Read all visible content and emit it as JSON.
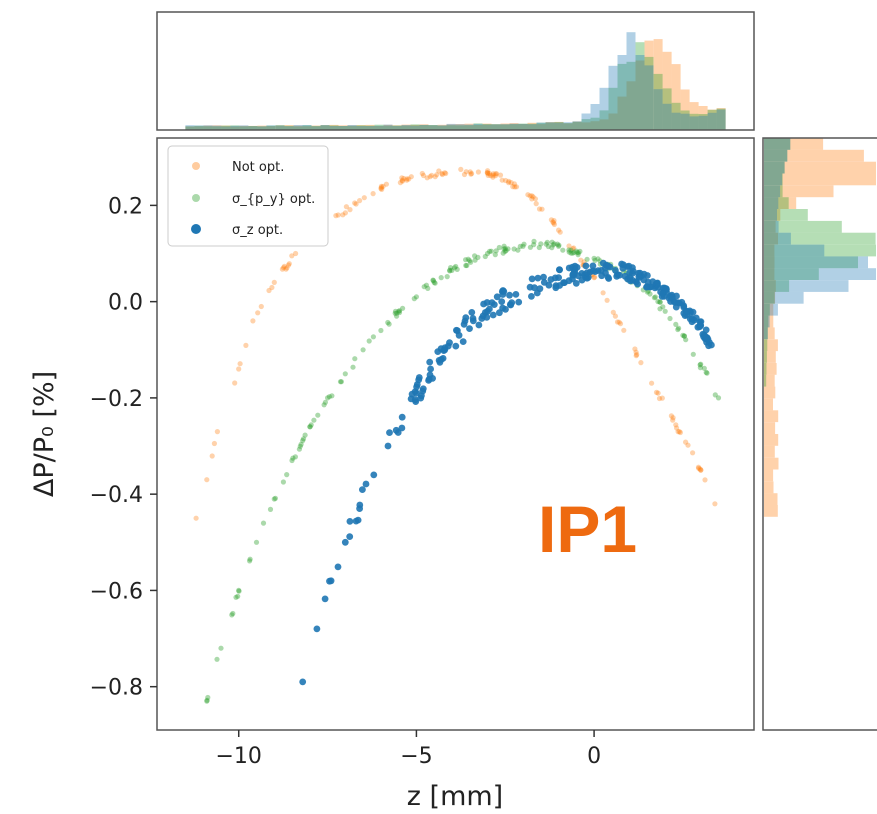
{
  "chart_data": {
    "type": "scatter",
    "xlabel": "z [mm]",
    "ylabel": "ΔP/P₀ [%]",
    "xlim": [
      -12.3,
      4.5
    ],
    "ylim": [
      -0.89,
      0.34
    ],
    "xticks": [
      -10,
      -5,
      0
    ],
    "xtick_labels": [
      "−10",
      "−5",
      "0"
    ],
    "yticks": [
      0.2,
      0.0,
      -0.2,
      -0.4,
      -0.6,
      -0.8
    ],
    "ytick_labels": [
      "0.2",
      "0.0",
      "−0.2",
      "−0.4",
      "−0.6",
      "−0.8"
    ],
    "legend_position": "top-left",
    "annotation": {
      "text": "IP1",
      "color": "#EE6A10"
    },
    "marginal_histograms": {
      "top": "z distribution per series",
      "right": "ΔP/P₀ distribution per series"
    },
    "series": [
      {
        "name": "Not opt.",
        "color": "#FF7F0E",
        "x": [
          -11.2,
          -10.9,
          -10.6,
          -10.0,
          -9.6,
          -9.0,
          -8.4,
          -7.8,
          -7.2,
          -6.6,
          -6.0,
          -5.4,
          -4.8,
          -4.2,
          -3.6,
          -3.0,
          -2.4,
          -1.8,
          -1.2,
          -0.6,
          0.0,
          0.6,
          1.2,
          1.8,
          2.4,
          3.0,
          3.4
        ],
        "y": [
          -0.45,
          -0.37,
          -0.27,
          -0.14,
          -0.04,
          0.04,
          0.1,
          0.14,
          0.18,
          0.21,
          0.235,
          0.252,
          0.262,
          0.268,
          0.27,
          0.268,
          0.25,
          0.22,
          0.17,
          0.11,
          0.05,
          -0.03,
          -0.11,
          -0.19,
          -0.27,
          -0.35,
          -0.42
        ]
      },
      {
        "name": "σ_{p_y} opt.",
        "color": "#2CA02C",
        "x": [
          -10.9,
          -10.5,
          -10.0,
          -9.5,
          -9.0,
          -8.5,
          -8.0,
          -7.5,
          -7.0,
          -6.5,
          -6.0,
          -5.5,
          -5.0,
          -4.5,
          -4.0,
          -3.5,
          -3.0,
          -2.5,
          -2.0,
          -1.5,
          -1.0,
          -0.5,
          0.0,
          0.5,
          1.0,
          1.5,
          2.0,
          2.5,
          3.0,
          3.5
        ],
        "y": [
          -0.83,
          -0.72,
          -0.6,
          -0.5,
          -0.41,
          -0.33,
          -0.26,
          -0.2,
          -0.15,
          -0.1,
          -0.06,
          -0.02,
          0.01,
          0.04,
          0.065,
          0.085,
          0.1,
          0.11,
          0.115,
          0.12,
          0.115,
          0.105,
          0.09,
          0.07,
          0.05,
          0.02,
          -0.02,
          -0.07,
          -0.13,
          -0.2
        ]
      },
      {
        "name": "σ_z opt.",
        "color": "#1F77B4",
        "x": [
          -8.2,
          -7.8,
          -7.4,
          -7.0,
          -6.6,
          -6.2,
          -5.8,
          -5.4,
          -5.0,
          -4.6,
          -4.2,
          -3.8,
          -3.4,
          -3.0,
          -2.6,
          -2.2,
          -1.8,
          -1.4,
          -1.0,
          -0.6,
          -0.2,
          0.2,
          0.6,
          1.0,
          1.4,
          1.8,
          2.2,
          2.6,
          3.0,
          3.3
        ],
        "y": [
          -0.79,
          -0.68,
          -0.58,
          -0.5,
          -0.43,
          -0.36,
          -0.3,
          -0.24,
          -0.19,
          -0.14,
          -0.1,
          -0.07,
          -0.04,
          -0.02,
          0.0,
          0.015,
          0.03,
          0.04,
          0.05,
          0.055,
          0.06,
          0.065,
          0.065,
          0.06,
          0.045,
          0.03,
          0.01,
          -0.02,
          -0.05,
          -0.09
        ]
      }
    ]
  }
}
